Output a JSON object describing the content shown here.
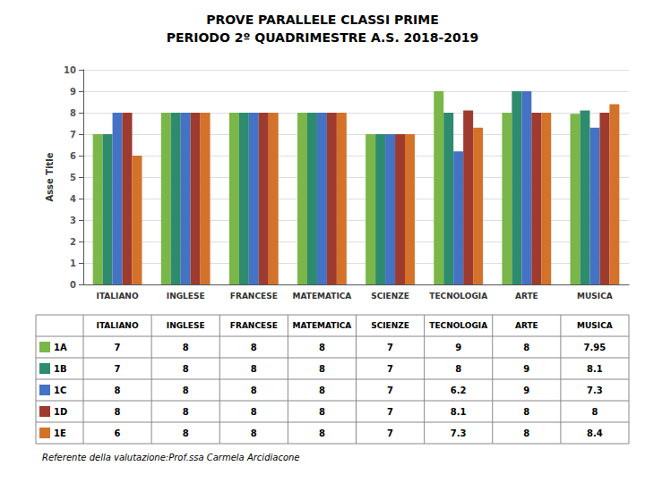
{
  "chart_data": {
    "type": "bar",
    "title": "PROVE PARALLELE CLASSI PRIME",
    "subtitle": "PERIODO 2º QUADRIMESTRE A.S. 2018-2019",
    "ylabel": "Asse Title",
    "categories": [
      "ITALIANO",
      "INGLESE",
      "FRANCESE",
      "MATEMATICA",
      "SCIENZE",
      "TECNOLOGIA",
      "ARTE",
      "MUSICA"
    ],
    "series": [
      {
        "name": "1A",
        "color": "#7ab648",
        "values": [
          7,
          8,
          8,
          8,
          7,
          9,
          8,
          7.95
        ]
      },
      {
        "name": "1B",
        "color": "#2e8b6e",
        "values": [
          7,
          8,
          8,
          8,
          7,
          8,
          9,
          8.1
        ]
      },
      {
        "name": "1C",
        "color": "#4472c4",
        "values": [
          8,
          8,
          8,
          8,
          7,
          6.2,
          9,
          7.3
        ]
      },
      {
        "name": "1D",
        "color": "#9e3b2e",
        "values": [
          8,
          8,
          8,
          8,
          7,
          8.1,
          8,
          8
        ]
      },
      {
        "name": "1E",
        "color": "#d4722a",
        "values": [
          6,
          8,
          8,
          8,
          7,
          7.3,
          8,
          8.4
        ]
      }
    ],
    "ylim": [
      0,
      10
    ],
    "yticks": [
      0,
      1,
      2,
      3,
      4,
      5,
      6,
      7,
      8,
      9,
      10
    ],
    "grid": true,
    "legend": "bottom",
    "annotations": [
      "Referente della valutazione:Prof.ssa Carmela Arcidiacone"
    ]
  }
}
